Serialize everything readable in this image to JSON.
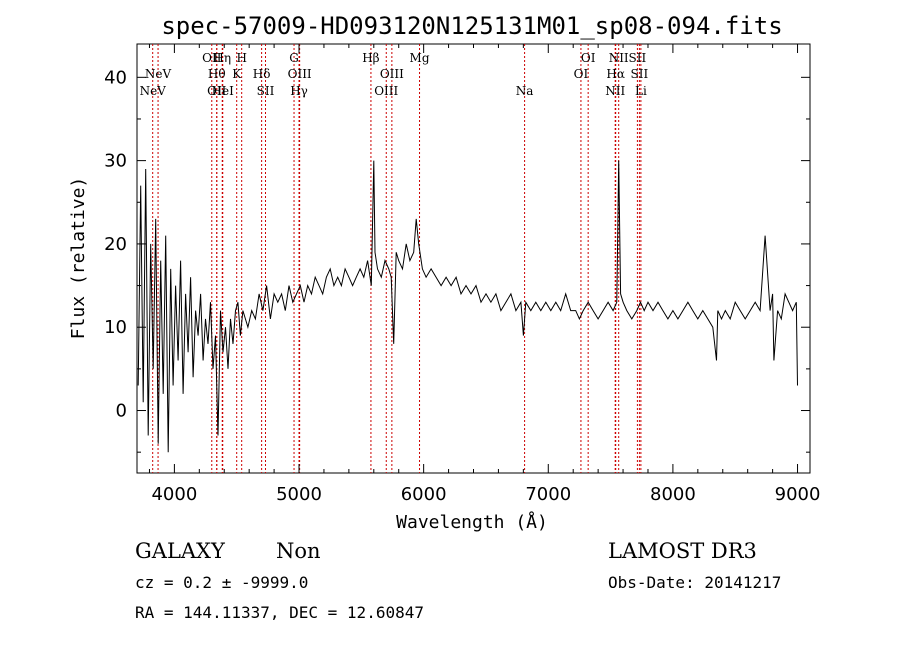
{
  "chart_data": {
    "type": "line",
    "title": "spec-57009-HD093120N125131M01_sp08-094.fits",
    "xlabel": "Wavelength (Å)",
    "ylabel": "Flux (relative)",
    "xlim": [
      3700,
      9100
    ],
    "ylim": [
      -7.5,
      44
    ],
    "x_ticks": [
      4000,
      5000,
      6000,
      7000,
      8000,
      9000
    ],
    "y_ticks": [
      0,
      10,
      20,
      30,
      40
    ],
    "x_tick_labels": [
      "4000",
      "5000",
      "6000",
      "7000",
      "8000",
      "9000"
    ],
    "y_tick_labels": [
      "0",
      "10",
      "20",
      "30",
      "40"
    ],
    "series_color": "#000000",
    "line_color": "#cc0000",
    "spectrum": {
      "x": [
        3710,
        3730,
        3750,
        3770,
        3790,
        3810,
        3830,
        3850,
        3870,
        3890,
        3910,
        3930,
        3950,
        3970,
        3990,
        4010,
        4030,
        4050,
        4070,
        4090,
        4110,
        4130,
        4150,
        4170,
        4190,
        4210,
        4230,
        4250,
        4270,
        4290,
        4310,
        4330,
        4350,
        4370,
        4390,
        4410,
        4430,
        4450,
        4470,
        4490,
        4510,
        4530,
        4550,
        4570,
        4590,
        4620,
        4650,
        4680,
        4710,
        4740,
        4770,
        4800,
        4830,
        4860,
        4890,
        4920,
        4950,
        4980,
        5010,
        5040,
        5070,
        5100,
        5130,
        5160,
        5190,
        5220,
        5250,
        5280,
        5310,
        5340,
        5370,
        5400,
        5430,
        5460,
        5490,
        5520,
        5550,
        5580,
        5600,
        5610,
        5630,
        5660,
        5690,
        5720,
        5740,
        5760,
        5780,
        5800,
        5830,
        5860,
        5890,
        5920,
        5940,
        5960,
        5990,
        6020,
        6060,
        6100,
        6140,
        6180,
        6220,
        6260,
        6300,
        6340,
        6380,
        6420,
        6460,
        6500,
        6540,
        6580,
        6620,
        6660,
        6700,
        6740,
        6780,
        6800,
        6820,
        6860,
        6900,
        6940,
        6980,
        7020,
        7060,
        7100,
        7140,
        7180,
        7220,
        7250,
        7280,
        7320,
        7360,
        7400,
        7440,
        7480,
        7520,
        7550,
        7565,
        7580,
        7600,
        7630,
        7670,
        7710,
        7740,
        7770,
        7800,
        7840,
        7880,
        7920,
        7960,
        8000,
        8040,
        8080,
        8120,
        8160,
        8200,
        8240,
        8280,
        8320,
        8350,
        8360,
        8390,
        8420,
        8460,
        8500,
        8540,
        8580,
        8620,
        8660,
        8700,
        8740,
        8780,
        8800,
        8810,
        8840,
        8870,
        8900,
        8930,
        8960,
        8990,
        9000
      ],
      "y": [
        3,
        27,
        1,
        29,
        -3,
        20,
        5,
        23,
        -4,
        18,
        2,
        21,
        -5,
        17,
        3,
        15,
        6,
        18,
        2,
        14,
        7,
        16,
        4,
        12,
        9,
        14,
        6,
        11,
        8,
        13,
        5,
        9,
        -3,
        12,
        7,
        10,
        5,
        11,
        8,
        12,
        13,
        9,
        12,
        11,
        10,
        12,
        11,
        14,
        12,
        15,
        11,
        14,
        13,
        14,
        12,
        15,
        13,
        14,
        15,
        13,
        15,
        14,
        16,
        15,
        14,
        16,
        17,
        15,
        16,
        15,
        17,
        16,
        15,
        16,
        17,
        16,
        18,
        15,
        30,
        19,
        17,
        16,
        18,
        17,
        16,
        8,
        19,
        18,
        17,
        20,
        18,
        19,
        23,
        20,
        17,
        16,
        17,
        16,
        15,
        16,
        15,
        16,
        14,
        15,
        14,
        15,
        13,
        14,
        13,
        14,
        12,
        13,
        14,
        12,
        13,
        9,
        13,
        12,
        13,
        12,
        13,
        12,
        13,
        12,
        14,
        12,
        12,
        11,
        12,
        13,
        12,
        11,
        12,
        13,
        12,
        13,
        30,
        14,
        13,
        12,
        11,
        12,
        13,
        12,
        13,
        12,
        13,
        12,
        11,
        12,
        11,
        12,
        13,
        12,
        11,
        12,
        11,
        10,
        6,
        12,
        11,
        12,
        11,
        13,
        12,
        11,
        12,
        13,
        12,
        21,
        12,
        14,
        6,
        12,
        11,
        14,
        13,
        12,
        13,
        3
      ]
    },
    "lines": [
      {
        "wl": 3826,
        "label": "NeV",
        "row": 2
      },
      {
        "wl": 3869,
        "label": "NeV",
        "row": 1
      },
      {
        "wl": 4300,
        "label": "OII",
        "row": 0
      },
      {
        "wl": 4340,
        "label": "OII",
        "row": 2
      },
      {
        "wl": 4340,
        "label": "Hθ",
        "row": 1
      },
      {
        "wl": 4384,
        "label": "Hη",
        "row": 0
      },
      {
        "wl": 4388,
        "label": "HeI",
        "row": 2
      },
      {
        "wl": 4500,
        "label": "K",
        "row": 1
      },
      {
        "wl": 4540,
        "label": "H",
        "row": 0
      },
      {
        "wl": 4700,
        "label": "Hδ",
        "row": 1
      },
      {
        "wl": 4731,
        "label": "SII",
        "row": 2
      },
      {
        "wl": 4960,
        "label": "G",
        "row": 0
      },
      {
        "wl": 5005,
        "label": "OIII",
        "row": 1
      },
      {
        "wl": 5000,
        "label": "Hγ",
        "row": 2
      },
      {
        "wl": 5577,
        "label": "Hβ",
        "row": 0
      },
      {
        "wl": 5700,
        "label": "OIII",
        "row": 2
      },
      {
        "wl": 5745,
        "label": "OIII",
        "row": 1
      },
      {
        "wl": 5967,
        "label": "Mg",
        "row": 0
      },
      {
        "wl": 6810,
        "label": "Na",
        "row": 2
      },
      {
        "wl": 7262,
        "label": "OI",
        "row": 1
      },
      {
        "wl": 7320,
        "label": "OI",
        "row": 0
      },
      {
        "wl": 7537,
        "label": "NII",
        "row": 2
      },
      {
        "wl": 7541,
        "label": "Hα",
        "row": 1
      },
      {
        "wl": 7565,
        "label": "NII",
        "row": 0
      },
      {
        "wl": 7715,
        "label": "SII",
        "row": 0
      },
      {
        "wl": 7731,
        "label": "SII",
        "row": 1
      },
      {
        "wl": 7743,
        "label": "Li",
        "row": 2
      }
    ]
  },
  "footer": {
    "class_label": "GALAXY",
    "subclass_label": "Non",
    "survey": "LAMOST DR3",
    "cz_line": "cz = 0.2 ± -9999.0",
    "obs_date": "Obs-Date: 20141217",
    "coords": "RA = 144.11337, DEC =  12.60847"
  }
}
